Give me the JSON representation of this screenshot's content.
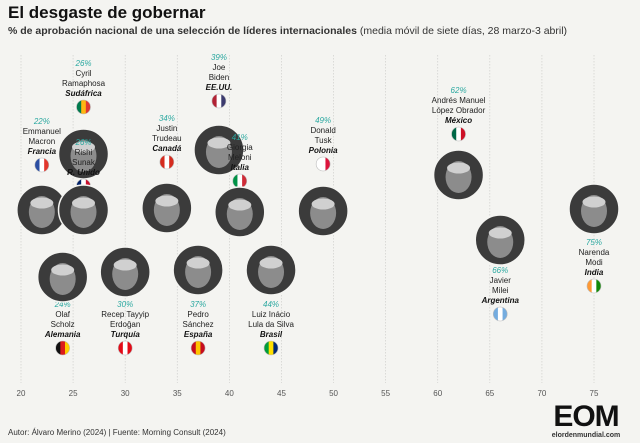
{
  "title": "El desgaste de gobernar",
  "subtitle_main": "% de aprobación nacional de una selección de líderes internacionales",
  "subtitle_note": "(media móvil de siete días, 28 marzo-3 abril)",
  "source": "Autor: Álvaro Merino (2024) | Fuente: Morning Consult (2024)",
  "logo": {
    "mark": "EOM",
    "url": "elordenmundial.com"
  },
  "chart_data": {
    "type": "scatter",
    "title": "El desgaste de gobernar",
    "xlim": [
      20,
      75
    ],
    "xticks": [
      20,
      25,
      30,
      35,
      40,
      45,
      50,
      55,
      60,
      65,
      70,
      75
    ],
    "grid": true,
    "points": [
      {
        "leader": [
          "Emmanuel",
          "Macron"
        ],
        "country": "Francia",
        "value": 22,
        "label": "22%",
        "flag": [
          "#2b4ea2",
          "#ffffff",
          "#e2372d"
        ]
      },
      {
        "leader": [
          "Olaf",
          "Scholz"
        ],
        "country": "Alemania",
        "value": 24,
        "label": "24%",
        "flag": [
          "#111111",
          "#dd1c1a",
          "#ffce00"
        ]
      },
      {
        "leader": [
          "Cyril",
          "Ramaphosa"
        ],
        "country": "Sudáfrica",
        "value": 26,
        "label": "26%",
        "flag": [
          "#007a4d",
          "#ffb612",
          "#de3831"
        ]
      },
      {
        "leader": [
          "Rishi",
          "Sunak"
        ],
        "country": "R. Unido",
        "value": 26,
        "label": "26%",
        "flag": [
          "#012169",
          "#ffffff",
          "#c8102e"
        ]
      },
      {
        "leader": [
          "Recep Tayyip",
          "Erdoğan"
        ],
        "country": "Turquía",
        "value": 30,
        "label": "30%",
        "flag": [
          "#e30a17",
          "#ffffff",
          "#e30a17"
        ]
      },
      {
        "leader": [
          "Justin",
          "Trudeau"
        ],
        "country": "Canadá",
        "value": 34,
        "label": "34%",
        "flag": [
          "#d52b1e",
          "#ffffff",
          "#d52b1e"
        ]
      },
      {
        "leader": [
          "Pedro",
          "Sánchez"
        ],
        "country": "España",
        "value": 37,
        "label": "37%",
        "flag": [
          "#c60b1e",
          "#ffc400",
          "#c60b1e"
        ]
      },
      {
        "leader": [
          "Joe",
          "Biden"
        ],
        "country": "EE.UU.",
        "value": 39,
        "label": "39%",
        "flag": [
          "#b22234",
          "#ffffff",
          "#3c3b6e"
        ]
      },
      {
        "leader": [
          "Giorgia",
          "Meloni"
        ],
        "country": "Italia",
        "value": 41,
        "label": "41%",
        "flag": [
          "#009246",
          "#ffffff",
          "#ce2b37"
        ]
      },
      {
        "leader": [
          "Luiz Inácio",
          "Lula da Silva"
        ],
        "country": "Brasil",
        "value": 44,
        "label": "44%",
        "flag": [
          "#009c3b",
          "#ffdf00",
          "#002776"
        ]
      },
      {
        "leader": [
          "Donald",
          "Tusk"
        ],
        "country": "Polonia",
        "value": 49,
        "label": "49%",
        "flag": [
          "#ffffff",
          "#ffffff",
          "#dc143c"
        ]
      },
      {
        "leader": [
          "Andrés Manuel",
          "López Obrador"
        ],
        "country": "México",
        "value": 62,
        "label": "62%",
        "flag": [
          "#006847",
          "#ffffff",
          "#ce1126"
        ]
      },
      {
        "leader": [
          "Javier",
          "Milei"
        ],
        "country": "Argentina",
        "value": 66,
        "label": "66%",
        "flag": [
          "#74acdf",
          "#ffffff",
          "#74acdf"
        ]
      },
      {
        "leader": [
          "Narenda",
          "Modi"
        ],
        "country": "India",
        "value": 75,
        "label": "75%",
        "flag": [
          "#ff9933",
          "#ffffff",
          "#138808"
        ]
      }
    ]
  }
}
